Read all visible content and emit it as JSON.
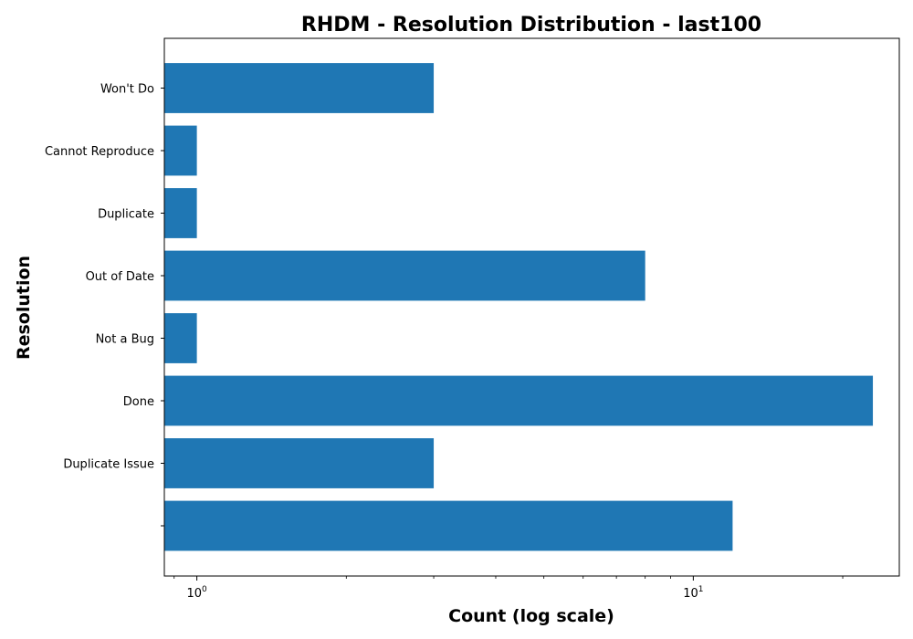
{
  "chart_data": {
    "type": "bar",
    "orientation": "horizontal",
    "title": "RHDM - Resolution Distribution - last100",
    "xlabel": "Count (log scale)",
    "ylabel": "Resolution",
    "x_scale": "log",
    "xlim": [
      0.86,
      26
    ],
    "categories": [
      "",
      "Duplicate Issue",
      "Done",
      "Not a Bug",
      "Out of Date",
      "Duplicate",
      "Cannot Reproduce",
      "Won't Do"
    ],
    "values": [
      12,
      3,
      23,
      1,
      8,
      1,
      1,
      3
    ],
    "x_ticks": [
      {
        "base": "10",
        "exp": "0",
        "value": 1
      },
      {
        "base": "10",
        "exp": "1",
        "value": 10
      }
    ],
    "bar_color": "#1f77b4",
    "grid": false,
    "legend": "none"
  }
}
